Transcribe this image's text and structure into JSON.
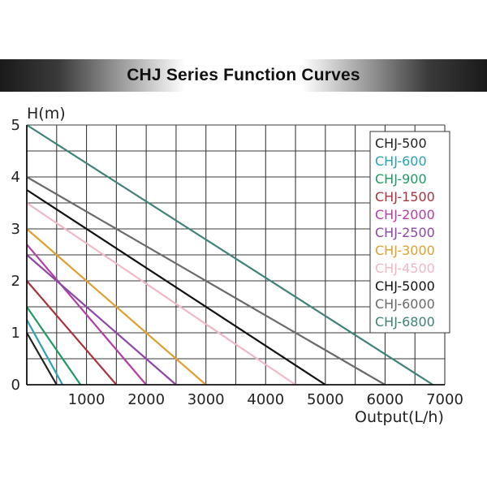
{
  "chart_data": {
    "type": "line",
    "title": "CHJ Series Function Curves",
    "xlabel": "Output(L/h)",
    "ylabel": "H(m)",
    "xlim": [
      0,
      7000
    ],
    "ylim": [
      0,
      5
    ],
    "x_ticks": [
      "1000",
      "2000",
      "3000",
      "4000",
      "5000",
      "6000",
      "7000"
    ],
    "y_ticks": [
      "0",
      "1",
      "2",
      "3",
      "4",
      "5"
    ],
    "grid": true,
    "legend_position": "right",
    "series": [
      {
        "name": "CHJ-500",
        "color": "#222222",
        "points": [
          [
            0,
            1.0
          ],
          [
            500,
            0
          ]
        ]
      },
      {
        "name": "CHJ-600",
        "color": "#2aa0b4",
        "points": [
          [
            0,
            1.25
          ],
          [
            600,
            0
          ]
        ]
      },
      {
        "name": "CHJ-900",
        "color": "#1f9a62",
        "points": [
          [
            0,
            1.5
          ],
          [
            900,
            0
          ]
        ]
      },
      {
        "name": "CHJ-1500",
        "color": "#a8333f",
        "points": [
          [
            0,
            2.0
          ],
          [
            1500,
            0
          ]
        ]
      },
      {
        "name": "CHJ-2000",
        "color": "#b23ea6",
        "points": [
          [
            0,
            2.7
          ],
          [
            2000,
            0
          ]
        ]
      },
      {
        "name": "CHJ-2500",
        "color": "#8d47a6",
        "points": [
          [
            0,
            2.5
          ],
          [
            2500,
            0
          ]
        ]
      },
      {
        "name": "CHJ-3000",
        "color": "#e0a030",
        "points": [
          [
            0,
            3.0
          ],
          [
            3000,
            0
          ]
        ]
      },
      {
        "name": "CHJ-4500",
        "color": "#f0b8c6",
        "points": [
          [
            0,
            3.5
          ],
          [
            4500,
            0
          ]
        ]
      },
      {
        "name": "CHJ-5000",
        "color": "#111111",
        "points": [
          [
            0,
            3.75
          ],
          [
            5000,
            0
          ]
        ]
      },
      {
        "name": "CHJ-6000",
        "color": "#6a6a6a",
        "points": [
          [
            0,
            4.0
          ],
          [
            6000,
            0
          ]
        ]
      },
      {
        "name": "CHJ-6800",
        "color": "#3f8378",
        "points": [
          [
            0,
            5.0
          ],
          [
            6800,
            0
          ]
        ]
      }
    ]
  }
}
